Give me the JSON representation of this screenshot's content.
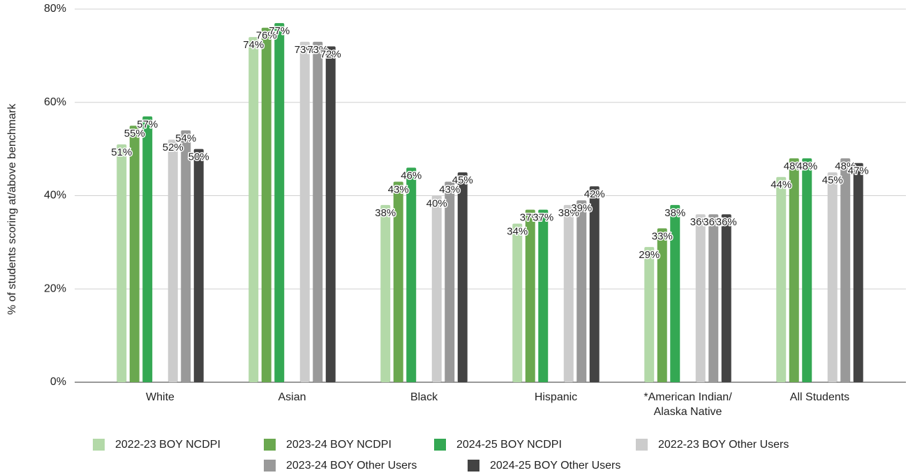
{
  "chart_data": {
    "type": "bar",
    "y_label": "% of students scoring at/above benchmark",
    "categories": [
      "White",
      "Asian",
      "Black",
      "Hispanic",
      "*American Indian/ Alaska Native",
      "All Students"
    ],
    "series": [
      {
        "name": "2022-23 BOY NCDPI",
        "color": "#b3d9a8",
        "values": [
          51,
          74,
          38,
          34,
          29,
          44
        ],
        "value_labels": [
          "51%",
          "74%",
          "38%",
          "34%",
          "29%",
          "44%"
        ]
      },
      {
        "name": "2023-24 BOY NCDPI",
        "color": "#6aa84f",
        "values": [
          55,
          76,
          43,
          37,
          33,
          48
        ],
        "value_labels": [
          "55%",
          "76%",
          "43%",
          "37%",
          "33%",
          "48%"
        ]
      },
      {
        "name": "2024-25 BOY NCDPI",
        "color": "#34a853",
        "values": [
          57,
          77,
          46,
          37,
          38,
          48
        ],
        "value_labels": [
          "57%",
          "77%",
          "46%",
          "37%",
          "38%",
          "48%"
        ]
      },
      {
        "name": "2022-23 BOY Other Users",
        "color": "#cccccc",
        "values": [
          52,
          73,
          40,
          38,
          36,
          45
        ],
        "value_labels": [
          "52%",
          "73%",
          "40%",
          "38%",
          "36%",
          "45%"
        ]
      },
      {
        "name": "2023-24 BOY Other Users",
        "color": "#999999",
        "values": [
          54,
          73,
          43,
          39,
          36,
          48
        ],
        "value_labels": [
          "54%",
          "73%",
          "43%",
          "39%",
          "36%",
          "48%"
        ]
      },
      {
        "name": "2024-25 BOY Other Users",
        "color": "#434343",
        "values": [
          50,
          72,
          45,
          42,
          36,
          47
        ],
        "value_labels": [
          "50%",
          "72%",
          "45%",
          "42%",
          "36%",
          "47%"
        ]
      }
    ],
    "ylim": [
      0,
      80
    ],
    "yticks": [
      {
        "value": 0,
        "label": "0%"
      },
      {
        "value": 20,
        "label": "20%"
      },
      {
        "value": 40,
        "label": "40%"
      },
      {
        "value": 60,
        "label": "60%"
      },
      {
        "value": 80,
        "label": "80%"
      }
    ],
    "grid": true,
    "legend": "bottom"
  }
}
